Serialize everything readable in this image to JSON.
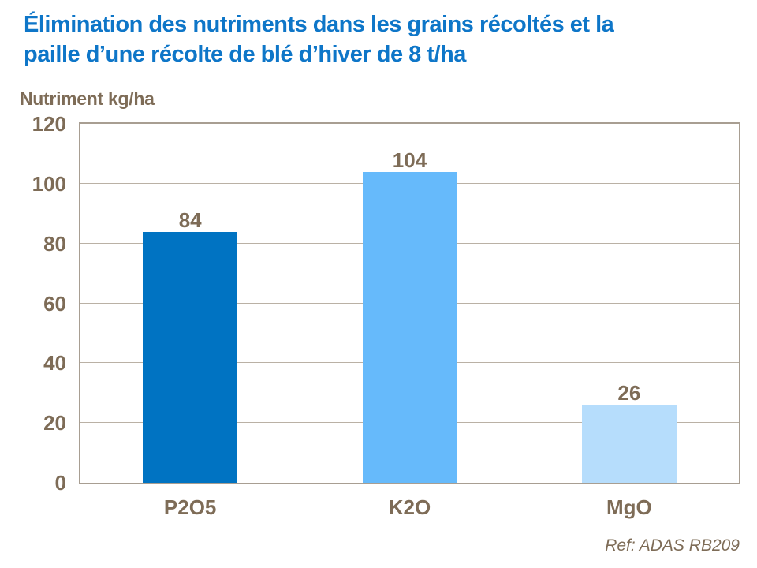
{
  "colors": {
    "title_blue": "#0E76C8",
    "text_brown": "#7E6C57",
    "plot_border": "#A89E92",
    "gridline": "#BAB1A5",
    "background": "#FFFFFF"
  },
  "header": {
    "title_line1": "Élimination des nutriments dans les grains récoltés et la",
    "title_line2": "paille d’une récolte de blé d’hiver de 8 t/ha"
  },
  "chart_data": {
    "type": "bar",
    "title": "Élimination des nutriments dans les grains récoltés et la paille d’une récolte de blé d’hiver de 8 t/ha",
    "ylabel": "Nutriment kg/ha",
    "xlabel": "",
    "categories": [
      "P2O5",
      "K2O",
      "MgO"
    ],
    "values": [
      84,
      104,
      26
    ],
    "bar_colors": [
      "#0073C2",
      "#66BAFB",
      "#B6DDFC"
    ],
    "ylim": [
      0,
      120
    ],
    "yticks": [
      0,
      20,
      40,
      60,
      80,
      100,
      120
    ],
    "grid": true,
    "legend": false,
    "value_labels_shown": true
  },
  "footer": {
    "reference": "Ref: ADAS RB209"
  }
}
